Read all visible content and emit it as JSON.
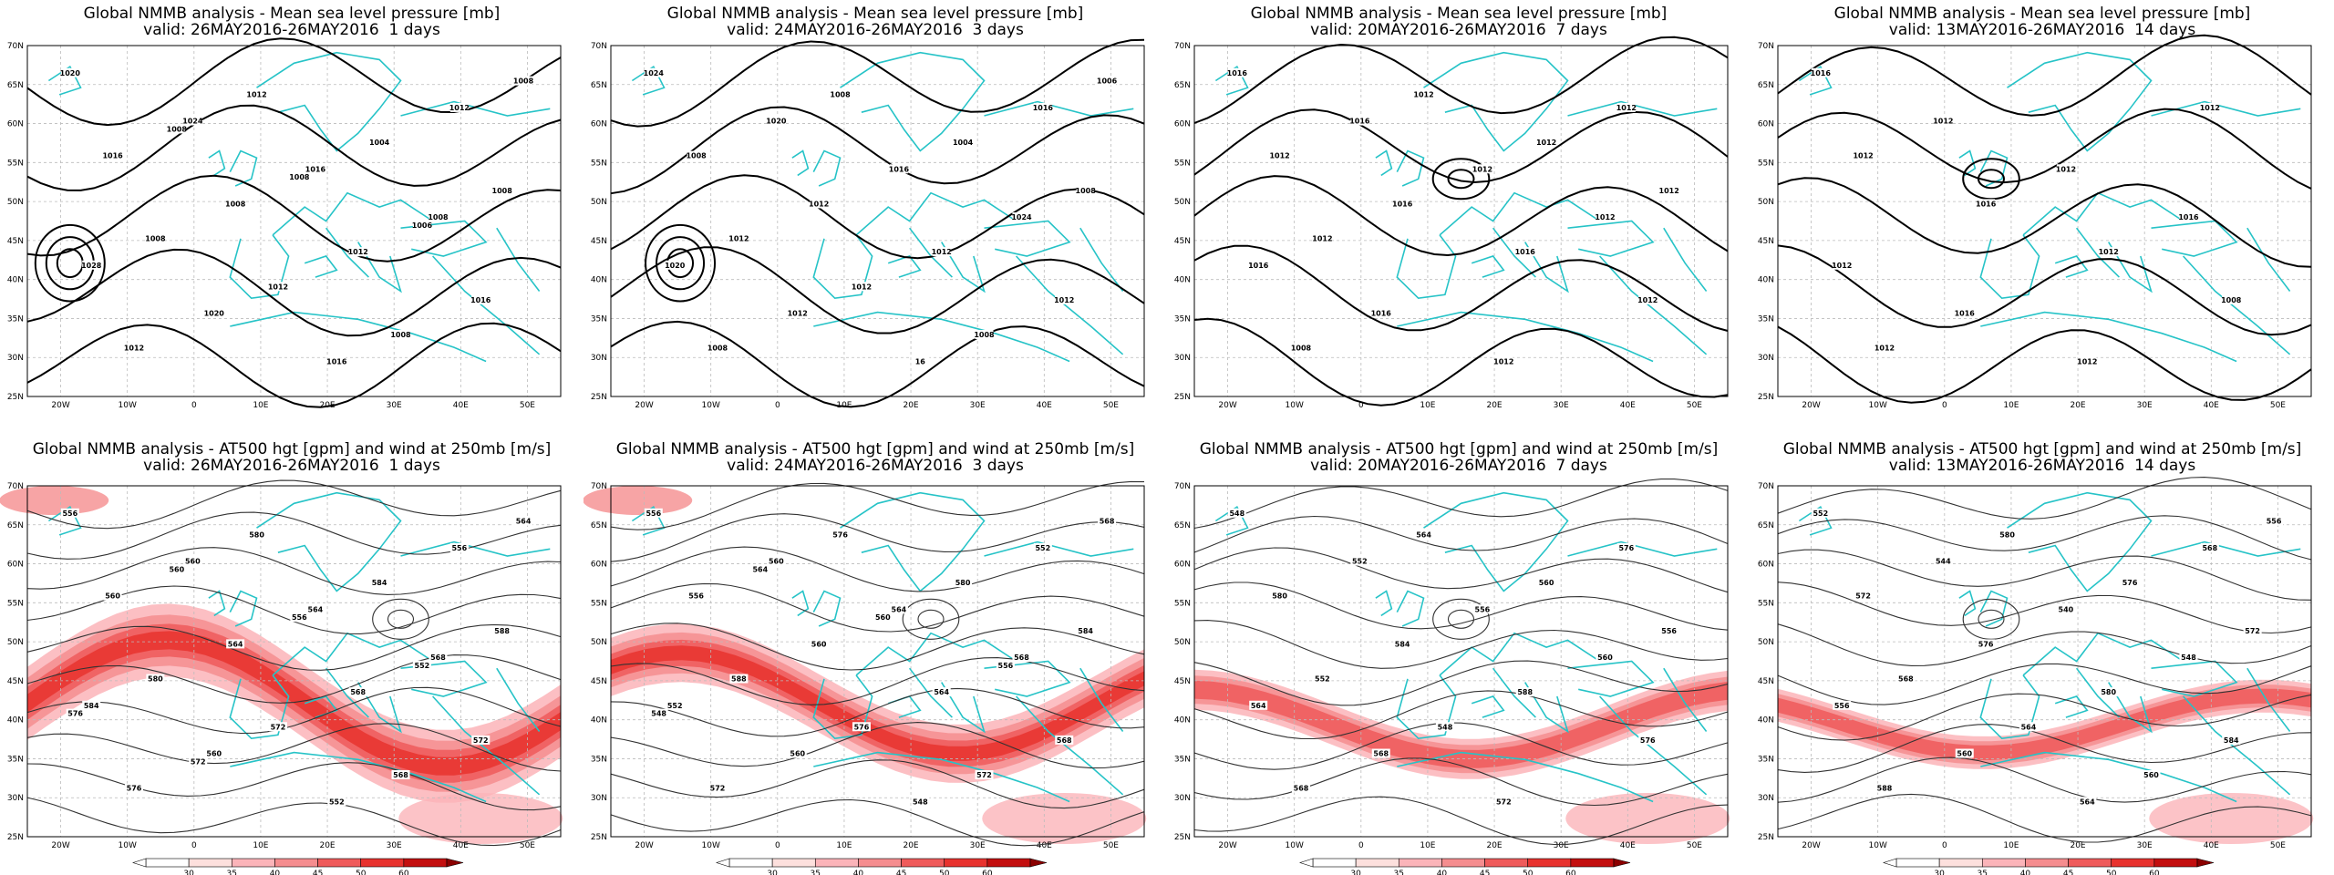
{
  "panels": [
    {
      "row": "top",
      "col": 0,
      "title": "Global NMMB analysis - Mean sea level pressure [mb]",
      "valid": "valid: 26MAY2016-26MAY2016  1 days",
      "labels": [
        "1020",
        "1024",
        "1016",
        "1008",
        "1028",
        "1020",
        "1016",
        "1012",
        "1016",
        "1008",
        "1012",
        "1016",
        "1012",
        "1012",
        "1004",
        "1008",
        "1008",
        "1012",
        "1008",
        "1008",
        "1008",
        "1008",
        "1006"
      ]
    },
    {
      "row": "top",
      "col": 1,
      "title": "Global NMMB analysis - Mean sea level pressure [mb]",
      "valid": "valid: 24MAY2016-26MAY2016  3 days",
      "labels": [
        "1024",
        "1020",
        "1016",
        "1024",
        "1020",
        "1012",
        "16",
        "1016",
        "1008",
        "1012",
        "1012",
        "1012",
        "1008",
        "1008",
        "1004",
        "1008",
        "1012",
        "1012",
        "1008",
        "1006"
      ]
    },
    {
      "row": "top",
      "col": 2,
      "title": "Global NMMB analysis - Mean sea level pressure [mb]",
      "valid": "valid: 20MAY2016-26MAY2016  7 days",
      "labels": [
        "1016",
        "1016",
        "1012",
        "1012",
        "1016",
        "1016",
        "1012",
        "1012",
        "1012",
        "1016",
        "1016",
        "1012",
        "1008",
        "1012",
        "1012",
        "1012",
        "1012"
      ]
    },
    {
      "row": "top",
      "col": 3,
      "title": "Global NMMB analysis - Mean sea level pressure [mb]",
      "valid": "valid: 13MAY2016-26MAY2016  14 days",
      "labels": [
        "1016",
        "1012",
        "1012",
        "1016",
        "1012",
        "1016",
        "1012",
        "1012",
        "1012",
        "1016",
        "1012",
        "1008",
        "1012"
      ]
    },
    {
      "row": "bottom",
      "col": 0,
      "title": "Global NMMB analysis - AT500 hgt [gpm] and wind at 250mb [m/s]",
      "valid": "valid: 26MAY2016-26MAY2016  1 days",
      "labels": [
        "556",
        "560",
        "564",
        "568",
        "584",
        "560",
        "552",
        "556",
        "560",
        "564",
        "568",
        "572",
        "576",
        "580",
        "584",
        "588",
        "580",
        "572",
        "568",
        "564",
        "560",
        "556",
        "552",
        "576",
        "572"
      ]
    },
    {
      "row": "bottom",
      "col": 1,
      "title": "Global NMMB analysis - AT500 hgt [gpm] and wind at 250mb [m/s]",
      "valid": "valid: 24MAY2016-26MAY2016  3 days",
      "labels": [
        "556",
        "560",
        "564",
        "568",
        "552",
        "560",
        "548",
        "552",
        "556",
        "560",
        "564",
        "568",
        "572",
        "576",
        "580",
        "584",
        "588",
        "576",
        "572",
        "568",
        "564",
        "560",
        "556",
        "548"
      ]
    },
    {
      "row": "bottom",
      "col": 2,
      "title": "Global NMMB analysis - AT500 hgt [gpm] and wind at 250mb [m/s]",
      "valid": "valid: 20MAY2016-26MAY2016  7 days",
      "labels": [
        "548",
        "552",
        "556",
        "560",
        "564",
        "568",
        "572",
        "576",
        "580",
        "584",
        "588",
        "576",
        "568",
        "564",
        "560",
        "556",
        "552",
        "548"
      ]
    },
    {
      "row": "bottom",
      "col": 3,
      "title": "Global NMMB analysis - AT500 hgt [gpm] and wind at 250mb [m/s]",
      "valid": "valid: 13MAY2016-26MAY2016  14 days",
      "labels": [
        "552",
        "544",
        "540",
        "548",
        "556",
        "560",
        "564",
        "568",
        "572",
        "576",
        "580",
        "584",
        "588",
        "580",
        "576",
        "572",
        "568",
        "564",
        "560",
        "556"
      ]
    }
  ],
  "axes": {
    "lat_ticks": [
      "25N",
      "30N",
      "35N",
      "40N",
      "45N",
      "50N",
      "55N",
      "60N",
      "65N",
      "70N"
    ],
    "lon_ticks": [
      "20W",
      "10W",
      "0",
      "10E",
      "20E",
      "30E",
      "40E",
      "50E"
    ],
    "lon_range": [
      -25,
      55
    ],
    "lat_range": [
      25,
      70
    ]
  },
  "colorbar": {
    "ticks": [
      "30",
      "35",
      "40",
      "45",
      "50",
      "60"
    ],
    "colors": [
      "#ffffff",
      "#fde0dd",
      "#fbb4b9",
      "#f58d8f",
      "#ef5b5b",
      "#e8322e",
      "#c30f0f"
    ]
  },
  "colors": {
    "coast": "#26c3c7",
    "contour_top": "#000000",
    "contour_bottom": "#333333"
  }
}
